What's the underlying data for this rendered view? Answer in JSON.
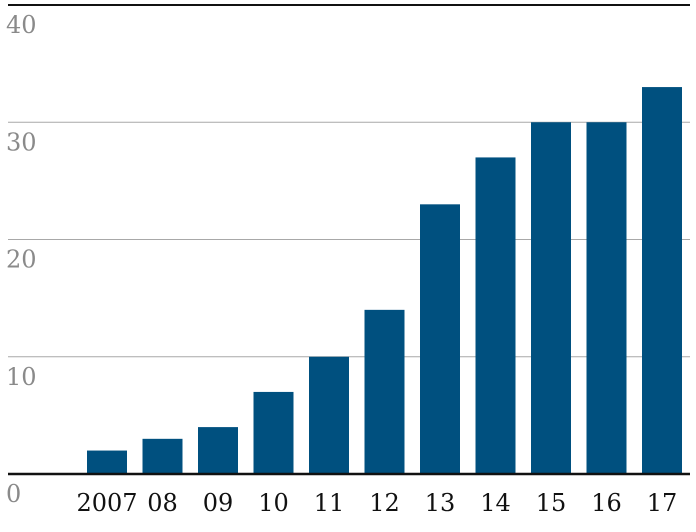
{
  "chart_data": {
    "type": "bar",
    "categories": [
      "2007",
      "08",
      "09",
      "10",
      "11",
      "12",
      "13",
      "14",
      "15",
      "16",
      "17"
    ],
    "values": [
      2,
      3,
      4,
      7,
      10,
      14,
      23,
      27,
      30,
      30,
      33
    ],
    "title": "",
    "xlabel": "",
    "ylabel": "",
    "ylim": [
      0,
      40
    ],
    "yticks": [
      0,
      10,
      20,
      30,
      40
    ],
    "grid": true,
    "bar_color": "#00507f",
    "grid_color": "#a8a8a8",
    "axis_color": "#111111"
  }
}
